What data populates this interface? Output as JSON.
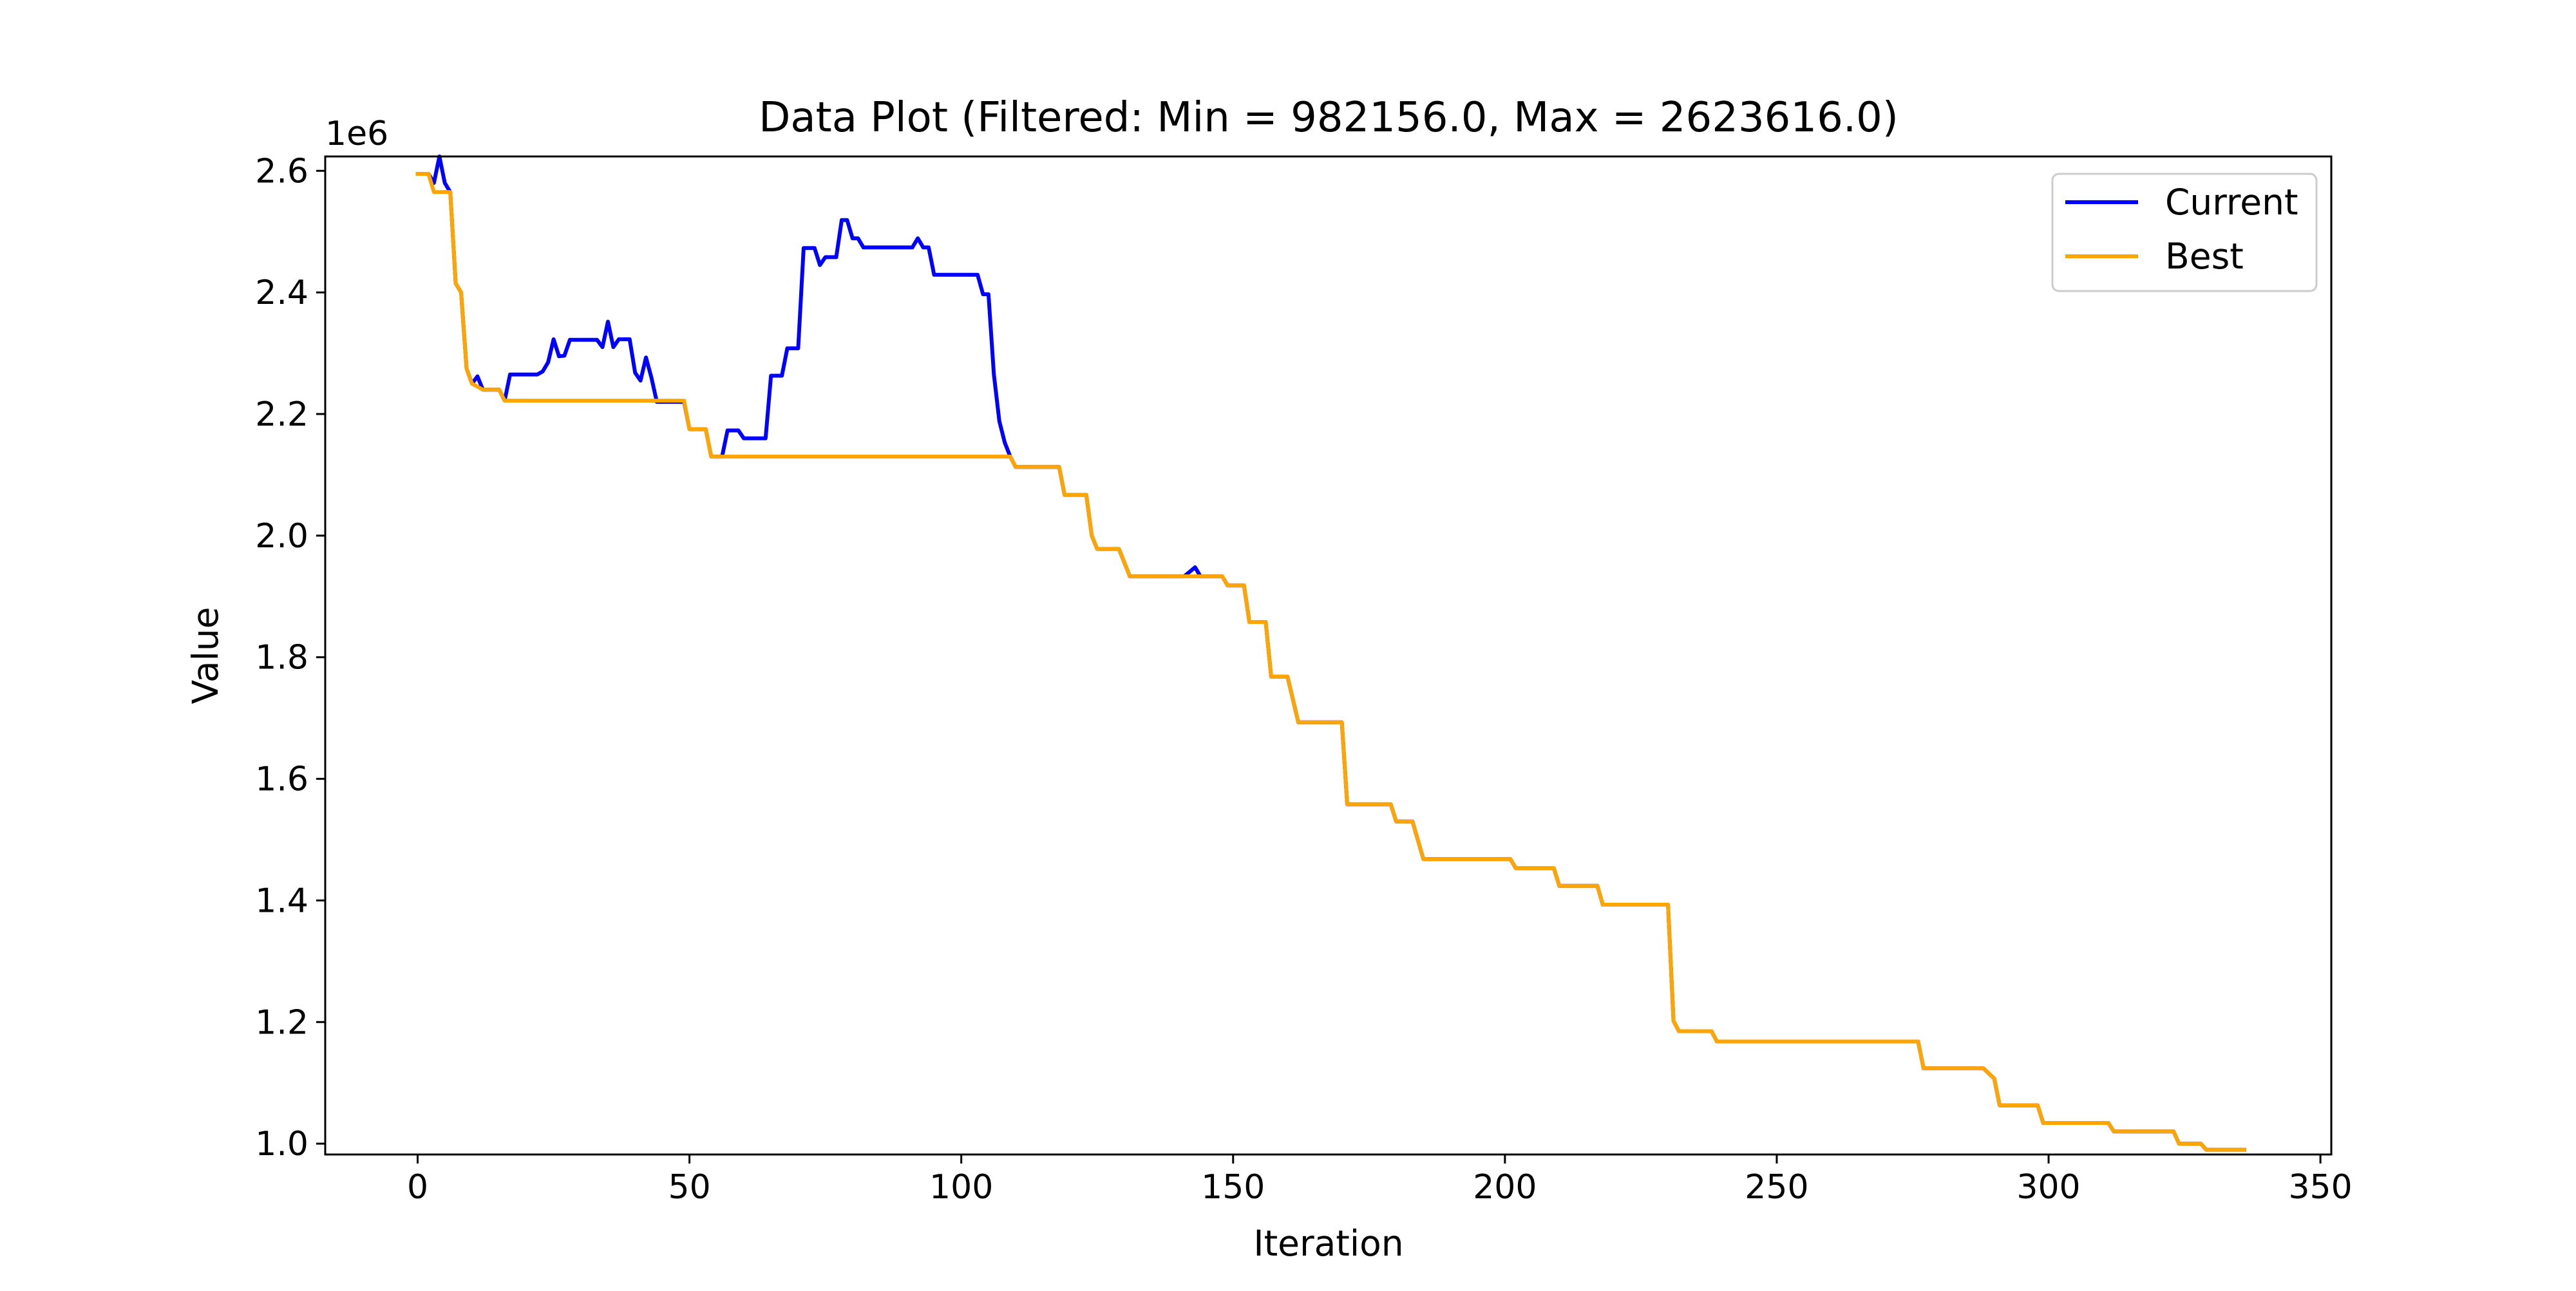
{
  "chart_data": {
    "type": "line",
    "title": "Data Plot (Filtered: Min = 982156.0, Max = 2623616.0)",
    "xlabel": "Iteration",
    "ylabel": "Value",
    "y_offset_label": "1e6",
    "xlim": [
      -17,
      352
    ],
    "ylim": [
      982156,
      2623616
    ],
    "x_ticks": [
      0,
      50,
      100,
      150,
      200,
      250,
      300,
      350
    ],
    "y_ticks": [
      1.0,
      1.2,
      1.4,
      1.6,
      1.8,
      2.0,
      2.2,
      2.4,
      2.6
    ],
    "y_tick_scale": 1000000,
    "grid": false,
    "legend_position": "top-right",
    "series": [
      {
        "name": "Current",
        "color": "#0000ff",
        "points": [
          [
            0,
            2595000
          ],
          [
            2,
            2595000
          ],
          [
            3,
            2580000
          ],
          [
            4,
            2623616
          ],
          [
            5,
            2580000
          ],
          [
            6,
            2565000
          ],
          [
            7,
            2415000
          ],
          [
            8,
            2400000
          ],
          [
            9,
            2275000
          ],
          [
            10,
            2250000
          ],
          [
            11,
            2262000
          ],
          [
            12,
            2240000
          ],
          [
            15,
            2240000
          ],
          [
            16,
            2222000
          ],
          [
            17,
            2265000
          ],
          [
            22,
            2265000
          ],
          [
            23,
            2270000
          ],
          [
            24,
            2285000
          ],
          [
            25,
            2323000
          ],
          [
            26,
            2295000
          ],
          [
            27,
            2296000
          ],
          [
            28,
            2322000
          ],
          [
            33,
            2322000
          ],
          [
            34,
            2310000
          ],
          [
            35,
            2352000
          ],
          [
            36,
            2310000
          ],
          [
            37,
            2323000
          ],
          [
            39,
            2323000
          ],
          [
            40,
            2268000
          ],
          [
            41,
            2255000
          ],
          [
            42,
            2293000
          ],
          [
            43,
            2260000
          ],
          [
            44,
            2220000
          ],
          [
            49,
            2220000
          ],
          [
            50,
            2175000
          ],
          [
            53,
            2175000
          ],
          [
            54,
            2130000
          ],
          [
            56,
            2130000
          ],
          [
            57,
            2173000
          ],
          [
            59,
            2173000
          ],
          [
            60,
            2160000
          ],
          [
            64,
            2160000
          ],
          [
            65,
            2263000
          ],
          [
            67,
            2263000
          ],
          [
            68,
            2308000
          ],
          [
            70,
            2308000
          ],
          [
            71,
            2473000
          ],
          [
            73,
            2473000
          ],
          [
            74,
            2445000
          ],
          [
            75,
            2458000
          ],
          [
            77,
            2458000
          ],
          [
            78,
            2519000
          ],
          [
            79,
            2519000
          ],
          [
            80,
            2489000
          ],
          [
            81,
            2489000
          ],
          [
            82,
            2474000
          ],
          [
            91,
            2474000
          ],
          [
            92,
            2489000
          ],
          [
            93,
            2474000
          ],
          [
            94,
            2474000
          ],
          [
            95,
            2429000
          ],
          [
            103,
            2429000
          ],
          [
            104,
            2397000
          ],
          [
            105,
            2397000
          ],
          [
            106,
            2265000
          ],
          [
            107,
            2188000
          ],
          [
            108,
            2153000
          ],
          [
            109,
            2130000
          ],
          [
            110,
            2113000
          ],
          [
            118,
            2113000
          ],
          [
            119,
            2067000
          ],
          [
            123,
            2067000
          ],
          [
            124,
            2000000
          ],
          [
            125,
            1978000
          ],
          [
            129,
            1978000
          ],
          [
            131,
            1933000
          ],
          [
            141,
            1933000
          ],
          [
            143,
            1948000
          ],
          [
            144,
            1933000
          ],
          [
            148,
            1933000
          ],
          [
            149,
            1918000
          ],
          [
            152,
            1918000
          ],
          [
            153,
            1858000
          ],
          [
            156,
            1858000
          ],
          [
            157,
            1768000
          ],
          [
            160,
            1768000
          ],
          [
            162,
            1693000
          ],
          [
            170,
            1693000
          ],
          [
            171,
            1558000
          ],
          [
            179,
            1558000
          ],
          [
            180,
            1530000
          ],
          [
            183,
            1530000
          ],
          [
            185,
            1468000
          ],
          [
            201,
            1468000
          ],
          [
            202,
            1453000
          ],
          [
            209,
            1453000
          ],
          [
            210,
            1424000
          ],
          [
            217,
            1424000
          ],
          [
            218,
            1393000
          ],
          [
            229,
            1393000
          ],
          [
            230,
            1393000
          ],
          [
            231,
            1202000
          ],
          [
            232,
            1185000
          ],
          [
            238,
            1185000
          ],
          [
            239,
            1168000
          ],
          [
            276,
            1168000
          ],
          [
            277,
            1124000
          ],
          [
            288,
            1124000
          ],
          [
            290,
            1107000
          ],
          [
            291,
            1063000
          ],
          [
            298,
            1063000
          ],
          [
            299,
            1034000
          ],
          [
            311,
            1034000
          ],
          [
            312,
            1020000
          ],
          [
            323,
            1020000
          ],
          [
            324,
            1000000
          ],
          [
            328,
            1000000
          ],
          [
            329,
            990000
          ],
          [
            336,
            990000
          ]
        ]
      },
      {
        "name": "Best",
        "color": "#ffa500",
        "points": [
          [
            0,
            2595000
          ],
          [
            2,
            2595000
          ],
          [
            3,
            2565000
          ],
          [
            6,
            2565000
          ],
          [
            7,
            2415000
          ],
          [
            8,
            2400000
          ],
          [
            9,
            2275000
          ],
          [
            10,
            2250000
          ],
          [
            12,
            2240000
          ],
          [
            15,
            2240000
          ],
          [
            16,
            2222000
          ],
          [
            49,
            2222000
          ],
          [
            50,
            2175000
          ],
          [
            53,
            2175000
          ],
          [
            54,
            2130000
          ],
          [
            109,
            2130000
          ],
          [
            110,
            2113000
          ],
          [
            118,
            2113000
          ],
          [
            119,
            2067000
          ],
          [
            123,
            2067000
          ],
          [
            124,
            2000000
          ],
          [
            125,
            1978000
          ],
          [
            129,
            1978000
          ],
          [
            131,
            1933000
          ],
          [
            148,
            1933000
          ],
          [
            149,
            1918000
          ],
          [
            152,
            1918000
          ],
          [
            153,
            1858000
          ],
          [
            156,
            1858000
          ],
          [
            157,
            1768000
          ],
          [
            160,
            1768000
          ],
          [
            162,
            1693000
          ],
          [
            170,
            1693000
          ],
          [
            171,
            1558000
          ],
          [
            179,
            1558000
          ],
          [
            180,
            1530000
          ],
          [
            183,
            1530000
          ],
          [
            185,
            1468000
          ],
          [
            201,
            1468000
          ],
          [
            202,
            1453000
          ],
          [
            209,
            1453000
          ],
          [
            210,
            1424000
          ],
          [
            217,
            1424000
          ],
          [
            218,
            1393000
          ],
          [
            229,
            1393000
          ],
          [
            230,
            1393000
          ],
          [
            231,
            1202000
          ],
          [
            232,
            1185000
          ],
          [
            238,
            1185000
          ],
          [
            239,
            1168000
          ],
          [
            276,
            1168000
          ],
          [
            277,
            1124000
          ],
          [
            288,
            1124000
          ],
          [
            290,
            1107000
          ],
          [
            291,
            1063000
          ],
          [
            298,
            1063000
          ],
          [
            299,
            1034000
          ],
          [
            311,
            1034000
          ],
          [
            312,
            1020000
          ],
          [
            323,
            1020000
          ],
          [
            324,
            1000000
          ],
          [
            328,
            1000000
          ],
          [
            329,
            990000
          ],
          [
            336,
            990000
          ]
        ]
      }
    ]
  }
}
